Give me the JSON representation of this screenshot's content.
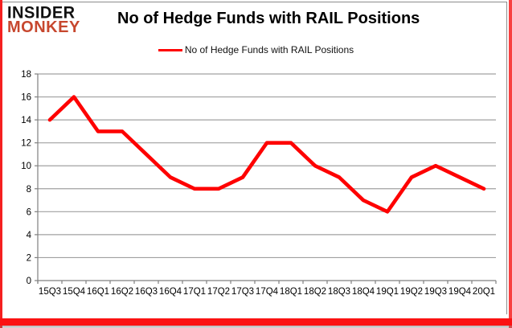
{
  "logo": {
    "line1": "INSIDER",
    "line2": "MONKEY"
  },
  "header": {
    "title": "No of Hedge Funds with RAIL Positions"
  },
  "legend": {
    "label": "No of Hedge Funds with RAIL Positions"
  },
  "chart_data": {
    "type": "line",
    "title": "No of Hedge Funds with RAIL Positions",
    "categories": [
      "15Q3",
      "15Q4",
      "16Q1",
      "16Q2",
      "16Q3",
      "16Q4",
      "17Q1",
      "17Q2",
      "17Q3",
      "17Q4",
      "18Q1",
      "18Q2",
      "18Q3",
      "18Q4",
      "19Q1",
      "19Q2",
      "19Q3",
      "19Q4",
      "20Q1"
    ],
    "series": [
      {
        "name": "No of Hedge Funds with RAIL Positions",
        "values": [
          14,
          16,
          13,
          13,
          11,
          9,
          8,
          8,
          9,
          12,
          12,
          10,
          9,
          7,
          6,
          9,
          10,
          9,
          8
        ]
      }
    ],
    "xlabel": "",
    "ylabel": "",
    "ylim": [
      0,
      18
    ],
    "ytick_step": 2,
    "grid": true,
    "legend_position": "top-center"
  },
  "colors": {
    "line": "#fe0000",
    "grid": "#a0a0a0",
    "axis": "#808080",
    "tick_text": "#000000",
    "logo_red": "#c7472e",
    "frame_red": "#fb1212"
  }
}
